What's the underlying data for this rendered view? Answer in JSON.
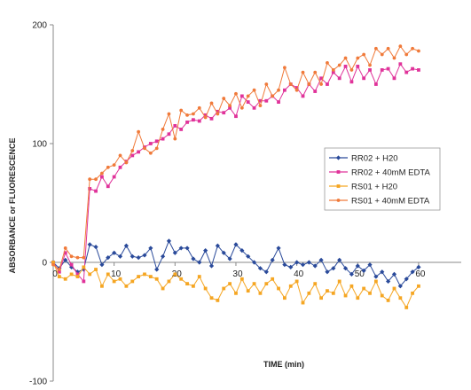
{
  "chart_data": {
    "type": "line",
    "xlabel": "TIME (min)",
    "ylabel": "ABSORBANCE or FLUORESCENCE",
    "xlim": [
      0,
      67
    ],
    "ylim": [
      -100,
      200
    ],
    "x_ticks": [
      {
        "value": 0,
        "label": "0"
      },
      {
        "value": 10,
        "label": "10"
      },
      {
        "value": 20,
        "label": "20"
      },
      {
        "value": 30,
        "label": "30"
      },
      {
        "value": 40,
        "label": "40"
      },
      {
        "value": 50,
        "label": "50"
      },
      {
        "value": 60,
        "label": "60"
      }
    ],
    "y_ticks": [
      {
        "value": -100,
        "label": "-100"
      },
      {
        "value": 0,
        "label": "0"
      },
      {
        "value": 100,
        "label": "100"
      },
      {
        "value": 200,
        "label": "200"
      }
    ],
    "grid": false,
    "legend_position": "right-middle",
    "series": [
      {
        "name": "RR02 + H20",
        "color": "#2a4a9a",
        "marker": "diamond",
        "x": [
          0,
          1,
          2,
          3,
          4,
          5,
          6,
          7,
          8,
          9,
          10,
          11,
          12,
          13,
          14,
          15,
          16,
          17,
          18,
          19,
          20,
          21,
          22,
          23,
          24,
          25,
          26,
          27,
          28,
          29,
          30,
          31,
          32,
          33,
          34,
          35,
          36,
          37,
          38,
          39,
          40,
          41,
          42,
          43,
          44,
          45,
          46,
          47,
          48,
          49,
          50,
          51,
          52,
          53,
          54,
          55,
          56,
          57,
          58,
          59,
          60
        ],
        "values": [
          0,
          -5,
          2,
          -4,
          -8,
          -6,
          15,
          13,
          -2,
          4,
          8,
          5,
          14,
          5,
          4,
          6,
          12,
          -6,
          5,
          18,
          8,
          12,
          12,
          3,
          0,
          10,
          -3,
          14,
          8,
          3,
          15,
          10,
          5,
          0,
          -5,
          -8,
          2,
          12,
          -2,
          -4,
          0,
          -2,
          0,
          -3,
          2,
          -8,
          -5,
          2,
          -5,
          -10,
          -3,
          -7,
          -2,
          -12,
          -8,
          -16,
          -10,
          -20,
          -14,
          -8,
          -4
        ]
      },
      {
        "name": "RR02 + 40mM EDTA",
        "color": "#e0339a",
        "marker": "square",
        "x": [
          0,
          1,
          2,
          3,
          4,
          5,
          6,
          7,
          8,
          9,
          10,
          11,
          12,
          13,
          14,
          15,
          16,
          17,
          18,
          19,
          20,
          21,
          22,
          23,
          24,
          25,
          26,
          27,
          28,
          29,
          30,
          31,
          32,
          33,
          34,
          35,
          36,
          37,
          38,
          39,
          40,
          41,
          42,
          43,
          44,
          45,
          46,
          47,
          48,
          49,
          50,
          51,
          52,
          53,
          54,
          55,
          56,
          57,
          58,
          59,
          60
        ],
        "values": [
          0,
          -8,
          8,
          -2,
          -10,
          -16,
          62,
          60,
          72,
          64,
          72,
          80,
          85,
          90,
          93,
          97,
          100,
          102,
          104,
          108,
          115,
          112,
          118,
          120,
          119,
          124,
          121,
          127,
          126,
          130,
          123,
          140,
          135,
          130,
          136,
          136,
          140,
          135,
          145,
          150,
          147,
          140,
          150,
          144,
          155,
          150,
          160,
          155,
          165,
          152,
          165,
          155,
          162,
          150,
          162,
          163,
          155,
          167,
          160,
          163,
          162
        ]
      },
      {
        "name": "RS01 + H20",
        "color": "#f5a623",
        "marker": "square",
        "x": [
          0,
          1,
          2,
          3,
          4,
          5,
          6,
          7,
          8,
          9,
          10,
          11,
          12,
          13,
          14,
          15,
          16,
          17,
          18,
          19,
          20,
          21,
          22,
          23,
          24,
          25,
          26,
          27,
          28,
          29,
          30,
          31,
          32,
          33,
          34,
          35,
          36,
          37,
          38,
          39,
          40,
          41,
          42,
          43,
          44,
          45,
          46,
          47,
          48,
          49,
          50,
          51,
          52,
          53,
          54,
          55,
          56,
          57,
          58,
          59,
          60
        ],
        "values": [
          0,
          -12,
          -14,
          -10,
          -12,
          -4,
          -10,
          -6,
          -20,
          -10,
          -16,
          -14,
          -20,
          -16,
          -12,
          -10,
          -12,
          -14,
          -22,
          -16,
          -10,
          -14,
          -18,
          -20,
          -12,
          -22,
          -30,
          -32,
          -22,
          -18,
          -26,
          -14,
          -24,
          -18,
          -26,
          -18,
          -14,
          -22,
          -30,
          -20,
          -16,
          -34,
          -26,
          -18,
          -30,
          -24,
          -26,
          -16,
          -28,
          -20,
          -30,
          -22,
          -26,
          -16,
          -28,
          -32,
          -22,
          -30,
          -38,
          -26,
          -20
        ]
      },
      {
        "name": "RS01 + 40mM EDTA",
        "color": "#f07a3a",
        "marker": "circle",
        "x": [
          0,
          1,
          2,
          3,
          4,
          5,
          6,
          7,
          8,
          9,
          10,
          11,
          12,
          13,
          14,
          15,
          16,
          17,
          18,
          19,
          20,
          21,
          22,
          23,
          24,
          25,
          26,
          27,
          28,
          29,
          30,
          31,
          32,
          33,
          34,
          35,
          36,
          37,
          38,
          39,
          40,
          41,
          42,
          43,
          44,
          45,
          46,
          47,
          48,
          49,
          50,
          51,
          52,
          53,
          54,
          55,
          56,
          57,
          58,
          59,
          60
        ],
        "values": [
          -2,
          -6,
          12,
          5,
          4,
          4,
          70,
          70,
          75,
          80,
          82,
          90,
          84,
          94,
          110,
          96,
          92,
          96,
          112,
          125,
          104,
          128,
          124,
          125,
          130,
          122,
          134,
          125,
          138,
          132,
          142,
          130,
          140,
          145,
          132,
          150,
          140,
          145,
          164,
          150,
          145,
          160,
          150,
          160,
          150,
          168,
          162,
          166,
          172,
          162,
          172,
          175,
          166,
          180,
          175,
          180,
          172,
          182,
          175,
          180,
          178
        ]
      }
    ]
  }
}
